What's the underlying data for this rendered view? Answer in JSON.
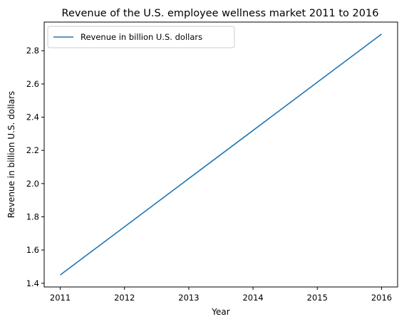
{
  "chart_data": {
    "type": "line",
    "title": "Revenue of the U.S. employee wellness market 2011 to 2016",
    "xlabel": "Year",
    "ylabel": "Revenue in billion U.S. dollars",
    "x": [
      2011,
      2012,
      2013,
      2014,
      2015,
      2016
    ],
    "series": [
      {
        "name": "Revenue in billion U.S. dollars",
        "values": [
          1.45,
          1.74,
          2.03,
          2.32,
          2.61,
          2.9
        ],
        "color": "#1f77b4"
      }
    ],
    "xlim": [
      2010.75,
      2016.25
    ],
    "ylim": [
      1.3775,
      2.9725
    ],
    "yticks": [
      1.4,
      1.6,
      1.8,
      2.0,
      2.2,
      2.4,
      2.6,
      2.8
    ],
    "ytick_labels": [
      "1.4",
      "1.6",
      "1.8",
      "2.0",
      "2.2",
      "2.4",
      "2.6",
      "2.8"
    ],
    "xtick_labels": [
      "2011",
      "2012",
      "2013",
      "2014",
      "2015",
      "2016"
    ],
    "grid": false,
    "legend_position": "top-left"
  }
}
